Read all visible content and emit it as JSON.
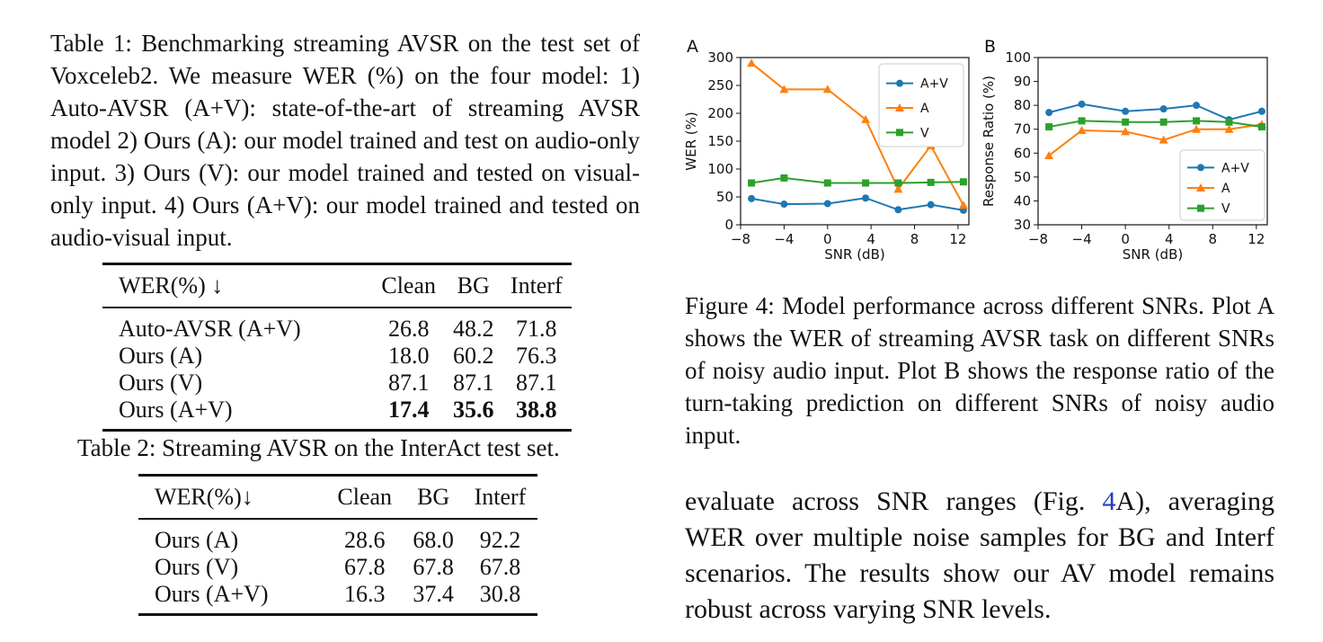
{
  "table1": {
    "caption": "Table 1: Benchmarking streaming AVSR on the test set of Voxceleb2. We measure WER (%) on the four model: 1) Auto-AVSR (A+V): state-of-the-art of streaming AVSR model 2) Ours (A): our model trained and test on audio-only input. 3) Ours (V): our model trained and tested on visual-only input. 4) Ours (A+V): our model trained and tested on audio-visual input.",
    "headers": [
      "WER(%) ↓",
      "Clean",
      "BG",
      "Interf"
    ],
    "rows": [
      {
        "name": "Auto-AVSR (A+V)",
        "clean": "26.8",
        "bg": "48.2",
        "interf": "71.8"
      },
      {
        "name": "Ours (A)",
        "clean": "18.0",
        "bg": "60.2",
        "interf": "76.3"
      },
      {
        "name": "Ours (V)",
        "clean": "87.1",
        "bg": "87.1",
        "interf": "87.1"
      },
      {
        "name": "Ours (A+V)",
        "clean": "17.4",
        "bg": "35.6",
        "interf": "38.8"
      }
    ]
  },
  "table2": {
    "caption": "Table 2: Streaming AVSR on the InterAct test set.",
    "headers": [
      "WER(%)↓",
      "Clean",
      "BG",
      "Interf"
    ],
    "rows": [
      {
        "name": "Ours (A)",
        "clean": "28.6",
        "bg": "68.0",
        "interf": "92.2"
      },
      {
        "name": "Ours (V)",
        "clean": "67.8",
        "bg": "67.8",
        "interf": "67.8"
      },
      {
        "name": "Ours (A+V)",
        "clean": "16.3",
        "bg": "37.4",
        "interf": "30.8"
      }
    ]
  },
  "figure4": {
    "caption": "Figure 4: Model performance across different SNRs. Plot A shows the WER of streaming AVSR task on different SNRs of noisy audio input. Plot B shows the response ratio of the turn-taking prediction on different SNRs of noisy audio input."
  },
  "body": {
    "pre": "evaluate across SNR ranges (Fig. ",
    "ref": "4",
    "post": "A), averaging WER over multiple noise samples for BG and Interf scenarios. The results show our AV model remains robust across varying SNR levels."
  },
  "chart_data": [
    {
      "type": "line",
      "panel": "A",
      "xlabel": "SNR (dB)",
      "ylabel": "WER (%)",
      "xlim": [
        -8,
        13
      ],
      "ylim": [
        0,
        300
      ],
      "xticks": [
        -8,
        -4,
        0,
        4,
        8,
        12
      ],
      "yticks": [
        0,
        50,
        100,
        150,
        200,
        250,
        300
      ],
      "legend_position": "top-right",
      "x": [
        -7,
        -4,
        0,
        3.5,
        6.5,
        9.5,
        12.5
      ],
      "series": [
        {
          "name": "A+V",
          "color": "#1f77b4",
          "marker": "circle",
          "values": [
            47,
            37,
            38,
            48,
            27,
            36,
            26
          ]
        },
        {
          "name": "A",
          "color": "#ff7f0e",
          "marker": "triangle",
          "values": [
            290,
            243,
            243,
            189,
            64,
            142,
            35
          ]
        },
        {
          "name": "V",
          "color": "#2ca02c",
          "marker": "square",
          "values": [
            75,
            84,
            75,
            75,
            75,
            76,
            77
          ]
        }
      ]
    },
    {
      "type": "line",
      "panel": "B",
      "xlabel": "SNR (dB)",
      "ylabel": "Response Ratio (%)",
      "xlim": [
        -8,
        13
      ],
      "ylim": [
        30,
        100
      ],
      "xticks": [
        -8,
        -4,
        0,
        4,
        8,
        12
      ],
      "yticks": [
        30,
        40,
        50,
        60,
        70,
        80,
        90,
        100
      ],
      "legend_position": "bottom-right",
      "x": [
        -7,
        -4,
        0,
        3.5,
        6.5,
        9.5,
        12.5
      ],
      "series": [
        {
          "name": "A+V",
          "color": "#1f77b4",
          "marker": "circle",
          "values": [
            77,
            80.5,
            77.5,
            78.5,
            80,
            74,
            77.5
          ]
        },
        {
          "name": "A",
          "color": "#ff7f0e",
          "marker": "triangle",
          "values": [
            59,
            69.5,
            69,
            65.5,
            70,
            70,
            72
          ]
        },
        {
          "name": "V",
          "color": "#2ca02c",
          "marker": "square",
          "values": [
            71,
            73.5,
            73,
            73,
            73.5,
            73,
            71
          ]
        }
      ]
    }
  ]
}
